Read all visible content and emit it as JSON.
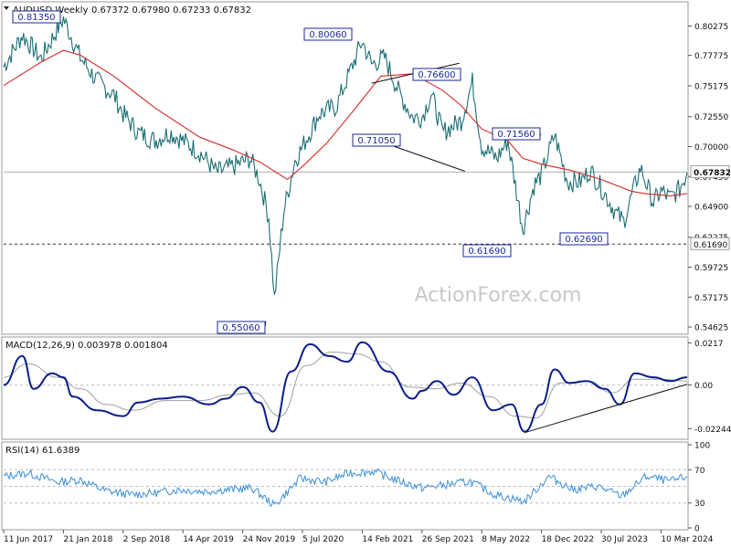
{
  "header": {
    "symbol": "AUDUSD,Weekly",
    "ohlc": "0.67372 0.67980 0.67233 0.67832"
  },
  "watermark": "ActionForex.com",
  "colors": {
    "price": "#1d6f74",
    "ma": "#d42a2a",
    "macd": "#0b1e8a",
    "signal": "#a0a0a0",
    "rsi": "#3a8fd8",
    "level_box": "#1a2a9a",
    "grid": "#c0c0c0"
  },
  "chart_data": [
    {
      "type": "line",
      "panel": "price",
      "series": [
        {
          "name": "",
          "role": "close",
          "x": [
            "2017-06-11",
            "2017-08-20",
            "2017-10-29",
            "2018-01-21",
            "2018-03-25",
            "2018-05-27",
            "2018-07-29",
            "2018-09-02",
            "2018-10-28",
            "2018-12-30",
            "2019-02-24",
            "2019-04-14",
            "2019-06-16",
            "2019-08-18",
            "2019-10-20",
            "2019-12-22",
            "2020-01-26",
            "2020-03-01",
            "2020-03-22",
            "2020-04-26",
            "2020-06-07",
            "2020-07-05",
            "2020-09-06",
            "2020-11-08",
            "2021-01-10",
            "2021-02-14",
            "2021-03-21",
            "2021-05-09",
            "2021-07-04",
            "2021-08-22",
            "2021-09-26",
            "2021-10-31",
            "2021-12-12",
            "2022-02-20",
            "2022-04-03",
            "2022-05-08",
            "2022-07-03",
            "2022-08-14",
            "2022-10-09",
            "2022-11-20",
            "2022-12-18",
            "2023-02-05",
            "2023-03-26",
            "2023-05-14",
            "2023-06-18",
            "2023-07-30",
            "2023-09-24",
            "2023-10-22",
            "2023-12-24",
            "2024-02-11",
            "2024-03-10",
            "2024-04-14",
            "2024-05-19",
            "2024-06-16"
          ],
          "values": [
            0.768,
            0.795,
            0.775,
            0.809,
            0.776,
            0.756,
            0.744,
            0.728,
            0.712,
            0.705,
            0.712,
            0.705,
            0.695,
            0.678,
            0.683,
            0.69,
            0.672,
            0.64,
            0.57,
            0.645,
            0.688,
            0.7,
            0.728,
            0.734,
            0.77,
            0.79,
            0.77,
            0.776,
            0.745,
            0.725,
            0.725,
            0.745,
            0.712,
            0.722,
            0.755,
            0.7,
            0.69,
            0.705,
            0.63,
            0.667,
            0.676,
            0.71,
            0.67,
            0.67,
            0.68,
            0.665,
            0.643,
            0.636,
            0.682,
            0.652,
            0.662,
            0.656,
            0.664,
            0.678
          ]
        },
        {
          "name": "",
          "role": "ma",
          "x": [
            "2017-06-11",
            "2017-10-29",
            "2018-01-21",
            "2018-03-25",
            "2018-07-29",
            "2018-12-30",
            "2019-06-16",
            "2019-10-20",
            "2020-01-26",
            "2020-05-10",
            "2020-07-05",
            "2020-10-04",
            "2021-01-10",
            "2021-04-25",
            "2021-08-22",
            "2021-12-12",
            "2022-02-20",
            "2022-05-08",
            "2022-08-14",
            "2022-10-09",
            "2022-12-18",
            "2023-04-02",
            "2023-07-30",
            "2023-11-19",
            "2024-01-07",
            "2024-04-14",
            "2024-06-16"
          ],
          "values": [
            0.752,
            0.772,
            0.782,
            0.778,
            0.76,
            0.733,
            0.708,
            0.697,
            0.687,
            0.672,
            0.683,
            0.703,
            0.73,
            0.76,
            0.762,
            0.748,
            0.735,
            0.715,
            0.705,
            0.69,
            0.685,
            0.68,
            0.672,
            0.662,
            0.66,
            0.658,
            0.66
          ]
        }
      ],
      "ylim": [
        0.5416,
        0.8218
      ],
      "yticks": [
        "0.80275",
        "0.77775",
        "0.75175",
        "0.72550",
        "0.70000",
        "0.67450",
        "0.64900",
        "0.62275",
        "0.59725",
        "0.57175",
        "0.54625"
      ],
      "xticks": [
        "11 Jun 2017",
        "21 Jan 2018",
        "2 Sep 2018",
        "14 Apr 2019",
        "24 Nov 2019",
        "5 Jul 2020",
        "14 Feb 2021",
        "26 Sep 2021",
        "8 May 2022",
        "18 Dec 2022",
        "30 Jul 2023",
        "10 Mar 2024"
      ],
      "current_price": "0.67832",
      "horizontal_levels": [
        {
          "value": 0.6169,
          "label": "0.61690",
          "style": "dashed"
        }
      ],
      "annotations": [
        "0.81350",
        "0.80060",
        "0.76600",
        "0.71050",
        "0.71560",
        "0.61690",
        "0.62690",
        "0.55060"
      ]
    },
    {
      "type": "line",
      "panel": "macd",
      "title": "MACD(12,26,9) 0.003978 0.001804",
      "series": [
        {
          "name": "",
          "role": "macd",
          "x": [
            "2017-06-11",
            "2017-08-20",
            "2017-10-01",
            "2017-12-10",
            "2018-01-21",
            "2018-02-25",
            "2018-05-27",
            "2018-09-02",
            "2018-10-28",
            "2019-01-20",
            "2019-04-14",
            "2019-07-21",
            "2019-09-22",
            "2019-11-24",
            "2020-01-26",
            "2020-03-15",
            "2020-05-24",
            "2020-08-02",
            "2020-10-11",
            "2020-12-20",
            "2021-02-14",
            "2021-05-23",
            "2021-08-22",
            "2021-09-26",
            "2021-11-21",
            "2022-01-23",
            "2022-04-03",
            "2022-06-19",
            "2022-08-28",
            "2022-10-16",
            "2022-12-18",
            "2023-02-05",
            "2023-04-02",
            "2023-06-04",
            "2023-08-13",
            "2023-10-08",
            "2023-12-03",
            "2024-02-11",
            "2024-04-14",
            "2024-06-16"
          ],
          "values": [
            0.0,
            0.015,
            -0.002,
            0.006,
            0.004,
            -0.006,
            -0.013,
            -0.016,
            -0.009,
            -0.007,
            -0.006,
            -0.01,
            -0.007,
            -0.001,
            -0.009,
            -0.024,
            0.007,
            0.021,
            0.015,
            0.012,
            0.022,
            0.007,
            -0.007,
            -0.003,
            0.002,
            -0.005,
            0.004,
            -0.013,
            -0.01,
            -0.024,
            -0.01,
            0.008,
            0.001,
            0.002,
            -0.002,
            -0.01,
            0.006,
            0.004,
            0.002,
            0.004
          ]
        },
        {
          "name": "",
          "role": "signal",
          "x": [
            "2017-06-11",
            "2017-09-10",
            "2017-12-31",
            "2018-03-25",
            "2018-07-01",
            "2018-10-07",
            "2019-02-10",
            "2019-06-16",
            "2019-10-06",
            "2020-01-05",
            "2020-04-12",
            "2020-07-19",
            "2020-10-25",
            "2021-01-24",
            "2021-04-25",
            "2021-08-08",
            "2021-11-14",
            "2022-02-20",
            "2022-06-05",
            "2022-09-11",
            "2022-11-27",
            "2023-02-26",
            "2023-06-11",
            "2023-09-10",
            "2023-12-03",
            "2024-03-10",
            "2024-06-16"
          ],
          "values": [
            0.004,
            0.011,
            0.004,
            -0.002,
            -0.01,
            -0.013,
            -0.008,
            -0.008,
            -0.005,
            -0.004,
            -0.016,
            0.01,
            0.017,
            0.016,
            0.012,
            -0.001,
            -0.002,
            0.001,
            -0.006,
            -0.016,
            -0.017,
            0.001,
            0.002,
            -0.004,
            0.003,
            0.003,
            0.002
          ]
        }
      ],
      "ylim": [
        -0.027,
        0.0233
      ],
      "yticks": [
        "0.0217",
        "0.00",
        "-0.022445"
      ],
      "trendlines": 1
    },
    {
      "type": "line",
      "panel": "rsi",
      "title": "RSI(14) 61.6389",
      "series": [
        {
          "name": "",
          "role": "rsi",
          "x": [
            "2017-06-11",
            "2017-09-10",
            "2017-12-31",
            "2018-03-25",
            "2018-06-24",
            "2018-09-30",
            "2018-12-30",
            "2019-03-31",
            "2019-06-30",
            "2019-09-29",
            "2019-12-29",
            "2020-03-22",
            "2020-06-28",
            "2020-09-27",
            "2020-12-27",
            "2021-03-28",
            "2021-06-27",
            "2021-09-26",
            "2021-12-26",
            "2022-03-27",
            "2022-06-26",
            "2022-10-16",
            "2023-01-15",
            "2023-04-16",
            "2023-07-16",
            "2023-10-15",
            "2024-01-14",
            "2024-04-14",
            "2024-06-16"
          ],
          "values": [
            62,
            66,
            55,
            58,
            45,
            40,
            42,
            46,
            44,
            46,
            48,
            27,
            60,
            55,
            66,
            68,
            57,
            48,
            52,
            56,
            40,
            32,
            62,
            46,
            50,
            38,
            62,
            56,
            61.64
          ]
        }
      ],
      "ylim": [
        0,
        100
      ],
      "yticks": [
        "100",
        "70",
        "30",
        "0"
      ],
      "levels": [
        70,
        50,
        30
      ]
    }
  ]
}
